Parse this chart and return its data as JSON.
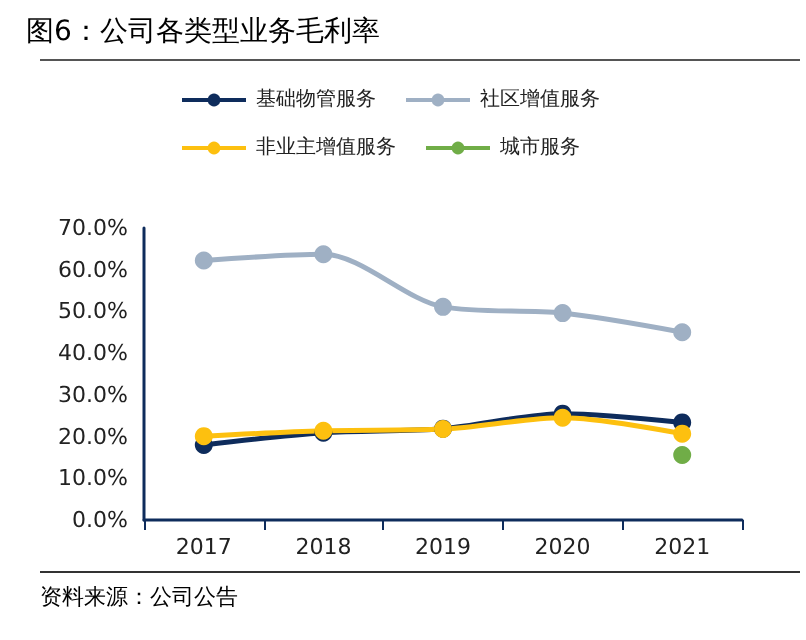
{
  "chart_data": {
    "type": "line",
    "title": "图6：公司各类型业务毛利率",
    "annotations": [
      "资料来源：公司公告"
    ],
    "categories": [
      "2017",
      "2018",
      "2019",
      "2020",
      "2021"
    ],
    "series": [
      {
        "name": "基础物管服务",
        "color": "#0e2c5c",
        "values": [
          18.0,
          20.9,
          21.9,
          25.5,
          23.4
        ]
      },
      {
        "name": "社区增值服务",
        "color": "#9fb0c4",
        "values": [
          62.2,
          63.7,
          51.1,
          49.6,
          45.0
        ]
      },
      {
        "name": "非业主增值服务",
        "color": "#fdc00f",
        "values": [
          20.1,
          21.4,
          21.8,
          24.5,
          20.7
        ]
      },
      {
        "name": "城市服务",
        "color": "#70ad47",
        "values": [
          null,
          null,
          null,
          null,
          15.6
        ]
      }
    ],
    "ylim": [
      0,
      70
    ],
    "yticks": [
      {
        "value": 0,
        "label": "0.0%"
      },
      {
        "value": 10,
        "label": "10.0%"
      },
      {
        "value": 20,
        "label": "20.0%"
      },
      {
        "value": 30,
        "label": "30.0%"
      },
      {
        "value": 40,
        "label": "40.0%"
      },
      {
        "value": 50,
        "label": "50.0%"
      },
      {
        "value": 60,
        "label": "60.0%"
      },
      {
        "value": 70,
        "label": "70.0%"
      }
    ],
    "grid": false,
    "legend": "top",
    "marker": "circle",
    "line_style": "solid"
  }
}
